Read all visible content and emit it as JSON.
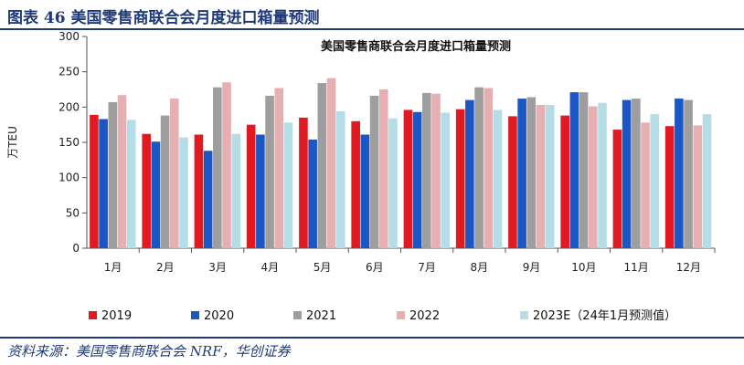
{
  "header": {
    "figure_title": "图表 46  美国零售商联合会月度进口箱量预测"
  },
  "footer": {
    "source": "资料来源：美国零售商联合会 NRF，华创证券"
  },
  "colors": {
    "frame_blue": "#1f3a78",
    "series": [
      "#e11a22",
      "#1a56c4",
      "#9e9e9e",
      "#e6b0b2",
      "#b5dde8"
    ]
  },
  "chart_data": {
    "type": "bar",
    "title": "美国零售商联合会月度进口箱量预测",
    "ylabel": "万TEU",
    "xlabel": "",
    "ylim": [
      0,
      300
    ],
    "yticks": [
      0,
      50,
      100,
      150,
      200,
      250,
      300
    ],
    "grid": false,
    "legend_position": "bottom",
    "categories": [
      "1月",
      "2月",
      "3月",
      "4月",
      "5月",
      "6月",
      "7月",
      "8月",
      "9月",
      "10月",
      "11月",
      "12月"
    ],
    "series": [
      {
        "name": "2019",
        "color": "#e11a22",
        "values": [
          189,
          162,
          161,
          175,
          185,
          180,
          196,
          197,
          187,
          188,
          168,
          173
        ]
      },
      {
        "name": "2020",
        "color": "#1a56c4",
        "values": [
          183,
          151,
          138,
          161,
          154,
          161,
          193,
          210,
          212,
          221,
          210,
          212
        ]
      },
      {
        "name": "2021",
        "color": "#9e9e9e",
        "values": [
          207,
          188,
          228,
          216,
          234,
          216,
          220,
          228,
          214,
          221,
          212,
          210
        ]
      },
      {
        "name": "2022",
        "color": "#e6b0b2",
        "values": [
          217,
          212,
          235,
          227,
          241,
          225,
          219,
          227,
          203,
          201,
          178,
          174
        ]
      },
      {
        "name": "2023E（24年1月预测值）",
        "color": "#b5dde8",
        "values": [
          182,
          157,
          162,
          178,
          194,
          184,
          192,
          196,
          203,
          206,
          190,
          190
        ]
      }
    ]
  }
}
